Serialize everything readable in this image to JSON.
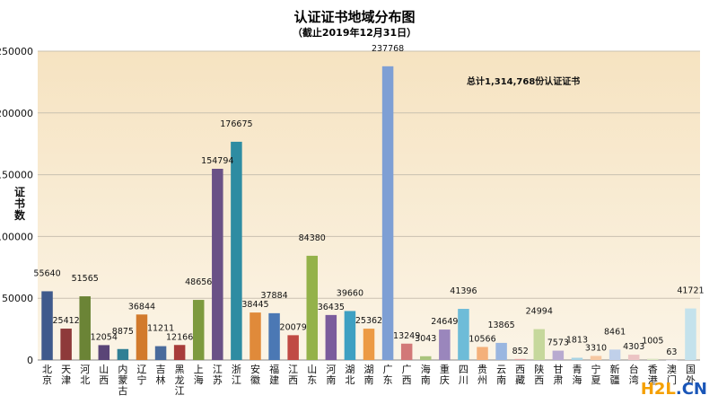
{
  "chart_data": {
    "type": "bar",
    "title": "认证证书地域分布图",
    "subtitle": "（截止2019年12月31日）",
    "ylabel": "证书数",
    "ylim": [
      0,
      250000
    ],
    "yticks": [
      0,
      50000,
      100000,
      150000,
      200000,
      250000
    ],
    "annotation": "总计1,314,768份认证证书",
    "categories": [
      "北京",
      "天津",
      "河北",
      "山西",
      "内蒙古",
      "辽宁",
      "吉林",
      "黑龙江",
      "上海",
      "江苏",
      "浙江",
      "安徽",
      "福建",
      "江西",
      "山东",
      "河南",
      "湖北",
      "湖南",
      "广东",
      "广西",
      "海南",
      "重庆",
      "四川",
      "贵州",
      "云南",
      "西藏",
      "陕西",
      "甘肃",
      "青海",
      "宁夏",
      "新疆",
      "台湾",
      "香港",
      "澳门",
      "国外"
    ],
    "category_lines": [
      [
        "北",
        "京"
      ],
      [
        "天",
        "津"
      ],
      [
        "河",
        "北"
      ],
      [
        "山",
        "西"
      ],
      [
        "内",
        "蒙",
        "古"
      ],
      [
        "辽",
        "宁"
      ],
      [
        "吉",
        "林"
      ],
      [
        "黑",
        "龙",
        "江"
      ],
      [
        "上",
        "海"
      ],
      [
        "江",
        "苏"
      ],
      [
        "浙",
        "江"
      ],
      [
        "安",
        "徽"
      ],
      [
        "福",
        "建"
      ],
      [
        "江",
        "西"
      ],
      [
        "山",
        "东"
      ],
      [
        "河",
        "南"
      ],
      [
        "湖",
        "北"
      ],
      [
        "湖",
        "南"
      ],
      [
        "广",
        "东"
      ],
      [
        "广",
        "西"
      ],
      [
        "海",
        "南"
      ],
      [
        "重",
        "庆"
      ],
      [
        "四",
        "川"
      ],
      [
        "贵",
        "州"
      ],
      [
        "云",
        "南"
      ],
      [
        "西",
        "藏"
      ],
      [
        "陕",
        "西"
      ],
      [
        "甘",
        "肃"
      ],
      [
        "青",
        "海"
      ],
      [
        "宁",
        "夏"
      ],
      [
        "新",
        "疆"
      ],
      [
        "台",
        "湾"
      ],
      [
        "香",
        "港"
      ],
      [
        "澳",
        "门"
      ],
      [
        "国",
        "外"
      ]
    ],
    "values": [
      55640,
      25412,
      51565,
      12054,
      8875,
      36844,
      11211,
      12166,
      48656,
      154794,
      176675,
      38445,
      37884,
      20079,
      84380,
      36435,
      39660,
      25362,
      237768,
      13249,
      3043,
      24649,
      41396,
      10566,
      13865,
      852,
      24994,
      7573,
      1813,
      3310,
      8461,
      4303,
      1005,
      63,
      41721
    ],
    "colors": [
      "#3f5a8c",
      "#8e3a3a",
      "#6b8436",
      "#5a4577",
      "#2f7f94",
      "#d27a2c",
      "#4a6b9c",
      "#a83c3a",
      "#7d9a3e",
      "#6a5186",
      "#2e8ca2",
      "#e08a3a",
      "#4b78b4",
      "#c04a44",
      "#94b24a",
      "#7b5c9c",
      "#3ea0c2",
      "#ec9a44",
      "#7e9fd4",
      "#d27878",
      "#a9c47c",
      "#9a86bc",
      "#6ebcd8",
      "#f4b07a",
      "#9ab6e0",
      "#e4a4a4",
      "#c6d89c",
      "#b8aad0",
      "#a8d4e4",
      "#f6c8a2",
      "#c0d0ea",
      "#ecc4c4",
      "#dbe6c2",
      "#d8d0e4",
      "#c4e2ec"
    ]
  },
  "watermark": {
    "part1": "H2L",
    "part2": ".CN"
  }
}
